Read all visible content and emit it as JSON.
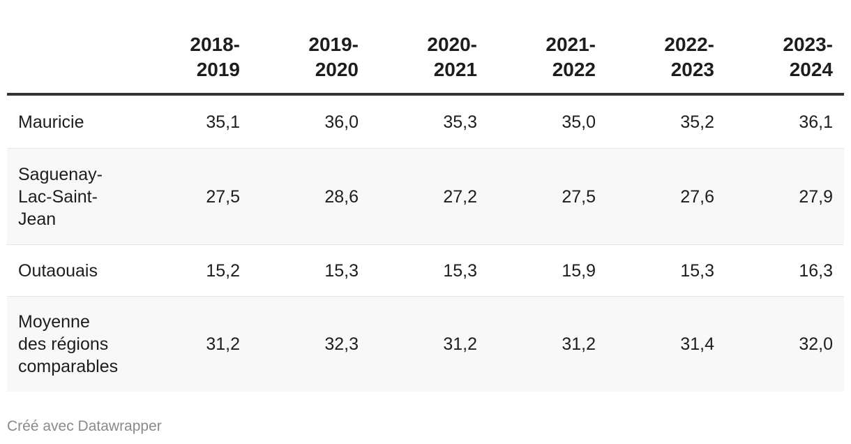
{
  "chart_data": {
    "type": "table",
    "columns": [
      "",
      "2018-\n2019",
      "2019-\n2020",
      "2020-\n2021",
      "2021-\n2022",
      "2022-\n2023",
      "2023-\n2024"
    ],
    "rows": [
      {
        "label": "Mauricie",
        "values": [
          "35,1",
          "36,0",
          "35,3",
          "35,0",
          "35,2",
          "36,1"
        ]
      },
      {
        "label": "Saguenay-\nLac-Saint-\nJean",
        "values": [
          "27,5",
          "28,6",
          "27,2",
          "27,5",
          "27,6",
          "27,9"
        ]
      },
      {
        "label": "Outaouais",
        "values": [
          "15,2",
          "15,3",
          "15,3",
          "15,9",
          "15,3",
          "16,3"
        ]
      },
      {
        "label": "Moyenne\ndes régions\ncomparables",
        "values": [
          "31,2",
          "32,3",
          "31,2",
          "31,2",
          "31,4",
          "32,0"
        ]
      }
    ],
    "row_shading": [
      "#ffffff",
      "#f8f8f8",
      "#ffffff",
      "#f8f8f8"
    ],
    "header_rule_color": "#333333"
  },
  "footer": {
    "credit": "Créé avec Datawrapper"
  }
}
